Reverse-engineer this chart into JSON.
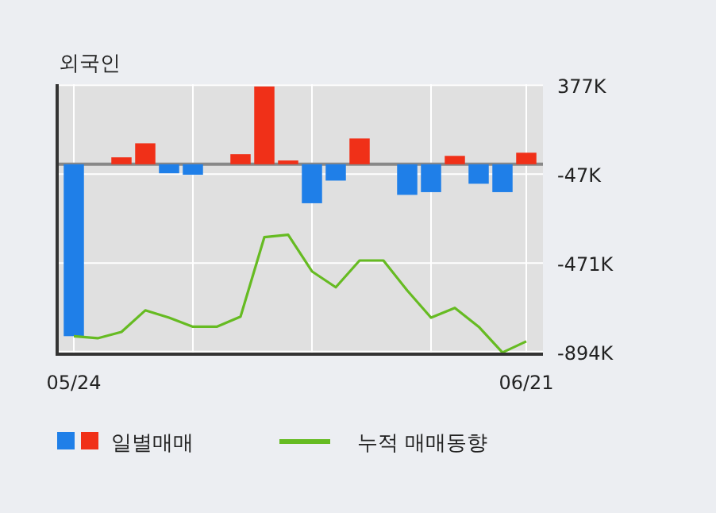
{
  "chart_data": {
    "type": "bar",
    "title": "외국인",
    "categories": [
      "05/24",
      null,
      null,
      null,
      null,
      null,
      null,
      null,
      null,
      null,
      null,
      null,
      null,
      null,
      null,
      null,
      null,
      null,
      null,
      "06/21"
    ],
    "series": [
      {
        "name": "일별매매",
        "colors": [
          "#1f7fe8",
          "#1f7fe8",
          "#f03018",
          "#f03018",
          "#1f7fe8",
          "#1f7fe8",
          "#1f7fe8",
          "#f03018",
          "#f03018",
          "#f03018",
          "#1f7fe8",
          "#1f7fe8",
          "#f03018",
          "#1f7fe8",
          "#1f7fe8",
          "#1f7fe8",
          "#f03018",
          "#1f7fe8",
          "#1f7fe8",
          "#f03018"
        ],
        "values": [
          -820,
          0,
          33,
          100,
          -43,
          -50,
          0,
          48,
          371,
          18,
          -186,
          -78,
          123,
          0,
          -146,
          -133,
          40,
          -93,
          -133,
          55
        ]
      },
      {
        "name": "누적 매매동향",
        "type": "line",
        "color": "#66bb22",
        "values": [
          -820,
          -830,
          -800,
          -697,
          -732,
          -775,
          -775,
          -727,
          -348,
          -336,
          -511,
          -587,
          -459,
          -459,
          -602,
          -732,
          -685,
          -775,
          -898,
          -845
        ]
      }
    ],
    "ylim": [
      -906,
      382
    ],
    "yticks": [
      {
        "value": 377,
        "label": "377K"
      },
      {
        "value": -47,
        "label": "-47K"
      },
      {
        "value": -471,
        "label": "-471K"
      },
      {
        "value": -894,
        "label": "-894K"
      }
    ],
    "ref_lines": [
      {
        "axis": "y",
        "value": 0,
        "color": "#888888"
      }
    ],
    "grid": true,
    "legend": "bottom",
    "marker": "none",
    "line_style": "solid"
  }
}
